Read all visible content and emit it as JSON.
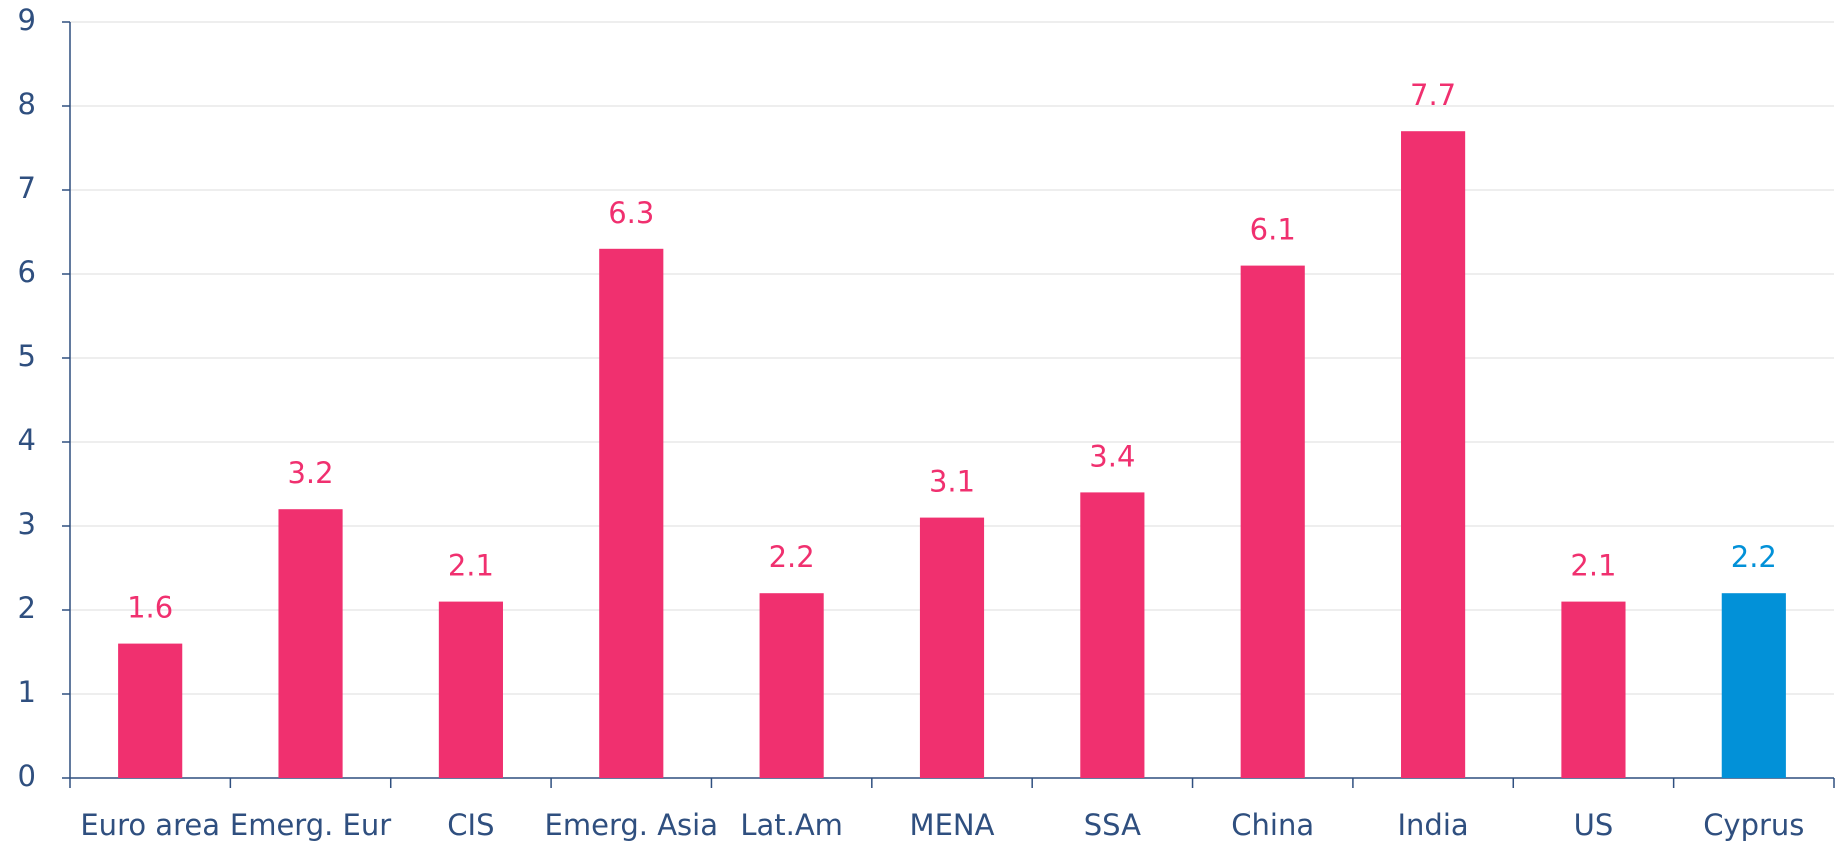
{
  "chart_data": {
    "type": "bar",
    "categories": [
      "Euro area",
      "Emerg. Eur",
      "CIS",
      "Emerg. Asia",
      "Lat.Am",
      "MENA",
      "SSA",
      "China",
      "India",
      "US",
      "Cyprus"
    ],
    "values": [
      1.6,
      3.2,
      2.1,
      6.3,
      2.2,
      3.1,
      3.4,
      6.1,
      7.7,
      2.1,
      2.2
    ],
    "colors": [
      "#f0306f",
      "#f0306f",
      "#f0306f",
      "#f0306f",
      "#f0306f",
      "#f0306f",
      "#f0306f",
      "#f0306f",
      "#f0306f",
      "#f0306f",
      "#0291d8"
    ],
    "ylim": [
      0,
      9
    ],
    "yticks": [
      0,
      1,
      2,
      3,
      4,
      5,
      6,
      7,
      8,
      9
    ],
    "grid": true
  }
}
